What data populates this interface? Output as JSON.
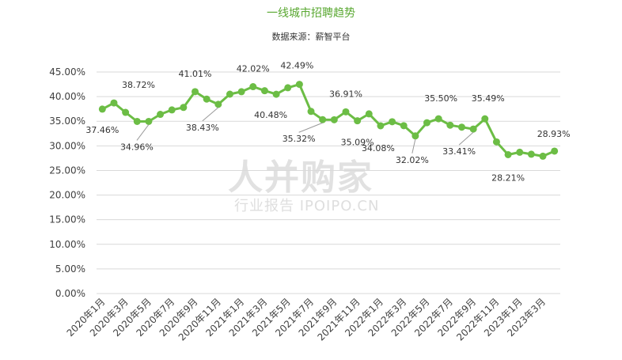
{
  "title": "一线城市招聘趋势",
  "subtitle": "数据来源：薪智平台",
  "watermark": {
    "main": "人并购家",
    "sub": "行业报告 IPOIPO.CN"
  },
  "colors": {
    "line": "#6cbd45",
    "marker": "#6cbd45",
    "grid": "#d9d9d9",
    "axis_text": "#404040",
    "label_text": "#333333",
    "title": "#5aa832"
  },
  "chart_data": {
    "type": "line",
    "ylim": [
      0,
      45
    ],
    "y_ticks": [
      "0.00%",
      "5.00%",
      "10.00%",
      "15.00%",
      "20.00%",
      "25.00%",
      "30.00%",
      "35.00%",
      "40.00%",
      "45.00%"
    ],
    "x_tick_labels": [
      "2020年1月",
      "2020年3月",
      "2020年5月",
      "2020年7月",
      "2020年9月",
      "2020年11月",
      "2021年1月",
      "2021年3月",
      "2021年5月",
      "2021年7月",
      "2021年9月",
      "2021年11月",
      "2022年1月",
      "2022年3月",
      "2022年5月",
      "2022年7月",
      "2022年9月",
      "2022年11月",
      "2023年1月",
      "2023年3月"
    ],
    "grid": true,
    "series": [
      {
        "values": [
          37.46,
          38.72,
          36.8,
          34.96,
          34.96,
          36.4,
          37.3,
          37.8,
          41.01,
          39.5,
          38.43,
          40.5,
          41.0,
          42.02,
          41.2,
          40.48,
          41.8,
          42.49,
          37.0,
          35.32,
          35.3,
          36.91,
          35.09,
          36.5,
          34.08,
          34.9,
          34.1,
          32.02,
          34.7,
          35.5,
          34.2,
          33.8,
          33.41,
          35.49,
          30.8,
          28.21,
          28.7,
          28.3,
          27.9,
          28.93
        ]
      }
    ],
    "data_labels": [
      {
        "index": 0,
        "text": "37.46%"
      },
      {
        "index": 1,
        "text": "38.72%"
      },
      {
        "index": 4,
        "text": "34.96%"
      },
      {
        "index": 8,
        "text": "41.01%"
      },
      {
        "index": 10,
        "text": "38.43%"
      },
      {
        "index": 13,
        "text": "42.02%"
      },
      {
        "index": 15,
        "text": "40.48%"
      },
      {
        "index": 17,
        "text": "42.49%"
      },
      {
        "index": 19,
        "text": "35.32%"
      },
      {
        "index": 21,
        "text": "36.91%"
      },
      {
        "index": 22,
        "text": "35.09%"
      },
      {
        "index": 24,
        "text": "34.08%"
      },
      {
        "index": 27,
        "text": "32.02%"
      },
      {
        "index": 29,
        "text": "35.50%"
      },
      {
        "index": 32,
        "text": "33.41%"
      },
      {
        "index": 33,
        "text": "35.49%"
      },
      {
        "index": 35,
        "text": "28.21%"
      },
      {
        "index": 39,
        "text": "28.93%"
      }
    ]
  }
}
